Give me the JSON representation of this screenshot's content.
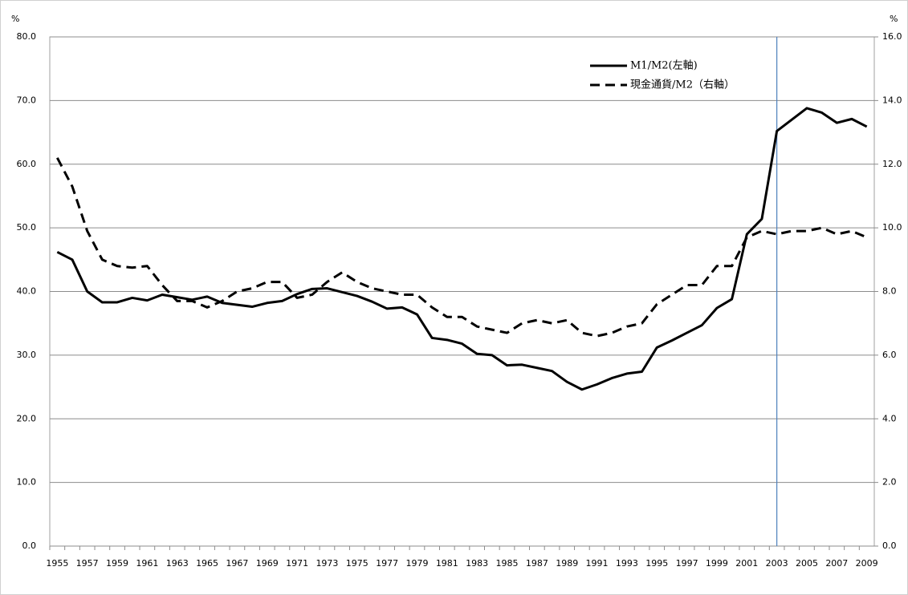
{
  "chart_data": {
    "type": "line",
    "ylabel": "%",
    "y2label": "%",
    "categories": [
      1955,
      null,
      1957,
      null,
      1959,
      null,
      1961,
      null,
      1963,
      null,
      1965,
      null,
      1967,
      null,
      1969,
      null,
      1971,
      null,
      1973,
      null,
      1975,
      null,
      1977,
      null,
      1979,
      null,
      1981,
      null,
      1983,
      null,
      1985,
      null,
      1987,
      null,
      1989,
      null,
      1991,
      null,
      1993,
      null,
      1995,
      null,
      1997,
      null,
      1999,
      null,
      2001,
      null,
      2003,
      null,
      2005,
      null,
      2007,
      null,
      2009
    ],
    "series": [
      {
        "name": "M1/M2(左軸)",
        "color": "#000000",
        "style": "solid",
        "axis": "y",
        "values": [
          46.2,
          45.0,
          40.0,
          38.3,
          38.3,
          39.0,
          38.6,
          39.5,
          39.1,
          38.7,
          39.2,
          38.2,
          37.9,
          37.6,
          38.2,
          38.5,
          39.6,
          40.4,
          40.5,
          39.9,
          39.3,
          38.4,
          37.3,
          37.5,
          36.4,
          32.7,
          32.4,
          31.8,
          30.2,
          30.0,
          28.4,
          28.5,
          28.0,
          27.5,
          25.8,
          24.6,
          25.4,
          26.4,
          27.1,
          27.4,
          31.2,
          32.3,
          33.5,
          34.7,
          37.4,
          38.8,
          49.0,
          51.4,
          65.2,
          67.0,
          68.8,
          68.1,
          66.5,
          67.1,
          65.9
        ]
      },
      {
        "name": "現金通貨/M2（右軸）",
        "color": "#000000",
        "style": "dashed",
        "axis": "y2",
        "values": [
          12.2,
          11.3,
          9.9,
          9.0,
          8.8,
          8.75,
          8.8,
          8.2,
          7.7,
          7.7,
          7.5,
          7.7,
          8.0,
          8.1,
          8.3,
          8.3,
          7.8,
          7.9,
          8.3,
          8.6,
          8.3,
          8.1,
          8.0,
          7.9,
          7.9,
          7.5,
          7.2,
          7.2,
          6.9,
          6.8,
          6.7,
          7.0,
          7.1,
          7.0,
          7.1,
          6.7,
          6.6,
          6.7,
          6.9,
          7.0,
          7.6,
          7.9,
          8.2,
          8.2,
          8.8,
          8.8,
          9.7,
          9.9,
          9.8,
          9.9,
          9.9,
          10.0,
          9.8,
          9.9,
          9.7
        ]
      }
    ],
    "ylim": [
      0,
      80
    ],
    "yticks": [
      {
        "value": 0,
        "label": "0.0"
      },
      {
        "value": 10,
        "label": "10.0"
      },
      {
        "value": 20,
        "label": "20.0"
      },
      {
        "value": 30,
        "label": "30.0"
      },
      {
        "value": 40,
        "label": "40.0"
      },
      {
        "value": 50,
        "label": "50.0"
      },
      {
        "value": 60,
        "label": "60.0"
      },
      {
        "value": 70,
        "label": "70.0"
      },
      {
        "value": 80,
        "label": "80.0"
      }
    ],
    "y2lim": [
      0,
      16
    ],
    "y2ticks": [
      {
        "value": 0,
        "label": "0.0"
      },
      {
        "value": 2,
        "label": "2.0"
      },
      {
        "value": 4,
        "label": "4.0"
      },
      {
        "value": 6,
        "label": "6.0"
      },
      {
        "value": 8,
        "label": "8.0"
      },
      {
        "value": 10,
        "label": "10.0"
      },
      {
        "value": 12,
        "label": "12.0"
      },
      {
        "value": 14,
        "label": "14.0"
      },
      {
        "value": 16,
        "label": "16.0"
      }
    ],
    "grid": true,
    "legend": "top-right",
    "vline": 2003,
    "vline_color": "#4f81bd"
  }
}
